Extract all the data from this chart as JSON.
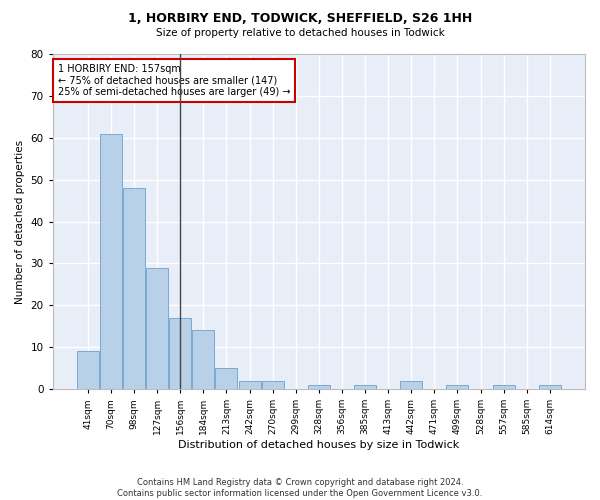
{
  "title": "1, HORBIRY END, TODWICK, SHEFFIELD, S26 1HH",
  "subtitle": "Size of property relative to detached houses in Todwick",
  "xlabel": "Distribution of detached houses by size in Todwick",
  "ylabel": "Number of detached properties",
  "categories": [
    "41sqm",
    "70sqm",
    "98sqm",
    "127sqm",
    "156sqm",
    "184sqm",
    "213sqm",
    "242sqm",
    "270sqm",
    "299sqm",
    "328sqm",
    "356sqm",
    "385sqm",
    "413sqm",
    "442sqm",
    "471sqm",
    "499sqm",
    "528sqm",
    "557sqm",
    "585sqm",
    "614sqm"
  ],
  "values": [
    9,
    61,
    48,
    29,
    17,
    14,
    5,
    2,
    2,
    0,
    1,
    0,
    1,
    0,
    2,
    0,
    1,
    0,
    1,
    0,
    1
  ],
  "bar_color": "#b8d0e8",
  "bar_edge_color": "#7aaace",
  "vline_index": 4,
  "annotation_line1": "1 HORBIRY END: 157sqm",
  "annotation_line2": "← 75% of detached houses are smaller (147)",
  "annotation_line3": "25% of semi-detached houses are larger (49) →",
  "annotation_box_facecolor": "#ffffff",
  "annotation_box_edgecolor": "#cc0000",
  "vline_color": "#444444",
  "ylim": [
    0,
    80
  ],
  "yticks": [
    0,
    10,
    20,
    30,
    40,
    50,
    60,
    70,
    80
  ],
  "background_color": "#e8eef8",
  "grid_color": "#ffffff",
  "footer_line1": "Contains HM Land Registry data © Crown copyright and database right 2024.",
  "footer_line2": "Contains public sector information licensed under the Open Government Licence v3.0."
}
